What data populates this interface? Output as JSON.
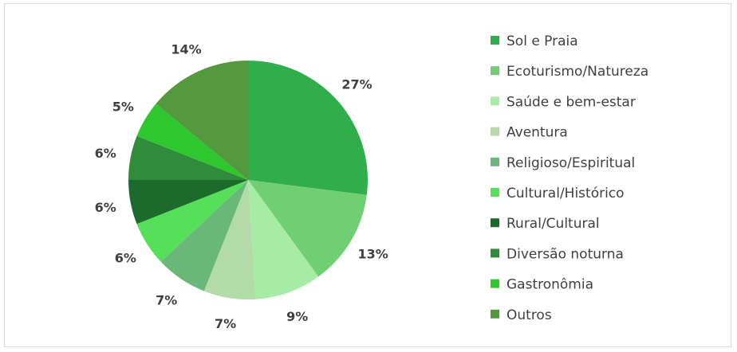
{
  "chart_data": {
    "type": "pie",
    "title": "",
    "legend_position": "right",
    "slices": [
      {
        "label": "Sol e Praia",
        "value": 27,
        "display": "27%",
        "color": "#2fae4b"
      },
      {
        "label": "Ecoturismo/Natureza",
        "value": 13,
        "display": "13%",
        "color": "#6fcf72"
      },
      {
        "label": "Saúde e bem-estar",
        "value": 9,
        "display": "9%",
        "color": "#a6eca4"
      },
      {
        "label": "Aventura",
        "value": 7,
        "display": "7%",
        "color": "#b2dba9"
      },
      {
        "label": "Religioso/Espiritual",
        "value": 7,
        "display": "7%",
        "color": "#6ab77a"
      },
      {
        "label": "Cultural/Histórico",
        "value": 6,
        "display": "6%",
        "color": "#56e05a"
      },
      {
        "label": "Rural/Cultural",
        "value": 6,
        "display": "6%",
        "color": "#1d6a2d"
      },
      {
        "label": "Diversão noturna",
        "value": 6,
        "display": "6%",
        "color": "#2f8c3a"
      },
      {
        "label": "Gastronômia",
        "value": 5,
        "display": "5%",
        "color": "#2ec72e"
      },
      {
        "label": "Outros",
        "value": 14,
        "display": "14%",
        "color": "#55993f"
      }
    ]
  }
}
